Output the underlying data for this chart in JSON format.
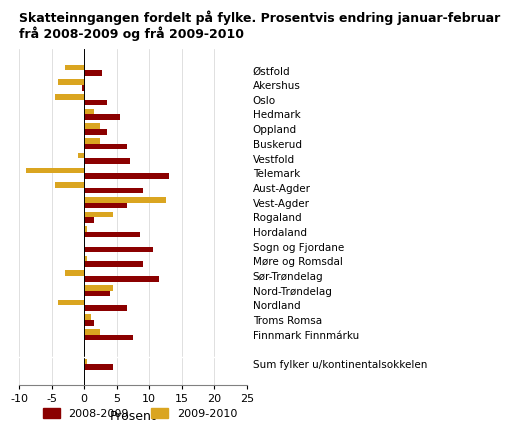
{
  "title": "Skatteinngangen fordelt på fylke. Prosentvis endring januar-februar\nfrå 2008-2009 og frå 2009-2010",
  "categories": [
    "Østfold",
    "Akershus",
    "Oslo",
    "Hedmark",
    "Oppland",
    "Buskerud",
    "Vestfold",
    "Telemark",
    "Aust-Agder",
    "Vest-Agder",
    "Rogaland",
    "Hordaland",
    "Sogn og Fjordane",
    "Møre og Romsdal",
    "Sør-Trøndelag",
    "Nord-Trøndelag",
    "Nordland",
    "Troms Romsa",
    "Finnmark Finnmárku",
    "",
    "Sum fylker u/kontinentalsokkelen"
  ],
  "values_2008_2009": [
    2.8,
    -0.3,
    3.5,
    5.5,
    3.5,
    6.5,
    7.0,
    13.0,
    9.0,
    6.5,
    1.5,
    8.5,
    10.5,
    9.0,
    11.5,
    4.0,
    6.5,
    1.5,
    7.5,
    null,
    4.5
  ],
  "values_2009_2010": [
    -3.0,
    -4.0,
    -4.5,
    1.5,
    2.5,
    2.5,
    -1.0,
    -9.0,
    -4.5,
    12.5,
    4.5,
    0.5,
    0.0,
    0.5,
    -3.0,
    4.5,
    -4.0,
    1.0,
    2.5,
    null,
    0.5
  ],
  "color_2008_2009": "#8B0000",
  "color_2009_2010": "#DAA520",
  "xlabel": "Prosent",
  "xlim": [
    -10,
    25
  ],
  "xticks": [
    -10,
    -5,
    0,
    5,
    10,
    15,
    20,
    25
  ],
  "legend_2008_2009": "2008-2009",
  "legend_2009_2010": "2009-2010",
  "bar_height": 0.38
}
